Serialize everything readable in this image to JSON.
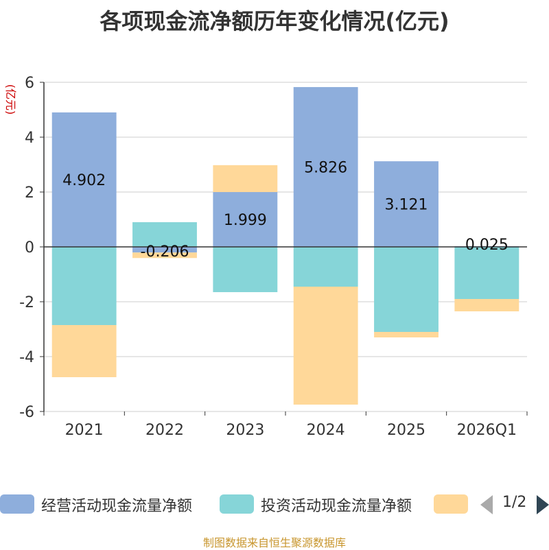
{
  "chart_data": {
    "type": "bar",
    "stacked": true,
    "title": "各项现金流净额历年变化情况(亿元)",
    "ylabel": "(亿元)",
    "ylim": [
      -6,
      6
    ],
    "yticks": [
      6,
      4,
      2,
      0,
      -2,
      -4,
      -6
    ],
    "grid": true,
    "categories": [
      "2021",
      "2022",
      "2023",
      "2024",
      "2025",
      "2026Q1"
    ],
    "series": [
      {
        "name": "经营活动现金流量净额",
        "color": "#8eaedc",
        "values": [
          4.902,
          -0.206,
          1.999,
          5.826,
          3.121,
          0.025
        ],
        "show_labels": true
      },
      {
        "name": "投资活动现金流量净额",
        "color": "#86d5d8",
        "values": [
          -2.85,
          0.9,
          -1.65,
          -1.45,
          -3.1,
          -1.9
        ],
        "show_labels": false
      },
      {
        "name": "",
        "color": "#ffd899",
        "values": [
          -1.9,
          -0.2,
          0.98,
          -4.3,
          -0.2,
          -0.45
        ],
        "show_labels": false
      }
    ],
    "legend_position": "bottom"
  },
  "legend": {
    "items": [
      {
        "label": "经营活动现金流量净额",
        "color": "#8eaedc"
      },
      {
        "label": "投资活动现金流量净额",
        "color": "#86d5d8"
      },
      {
        "label": "",
        "color": "#ffd899"
      }
    ],
    "page": "1/2"
  },
  "source": "制图数据来自恒生聚源数据库"
}
